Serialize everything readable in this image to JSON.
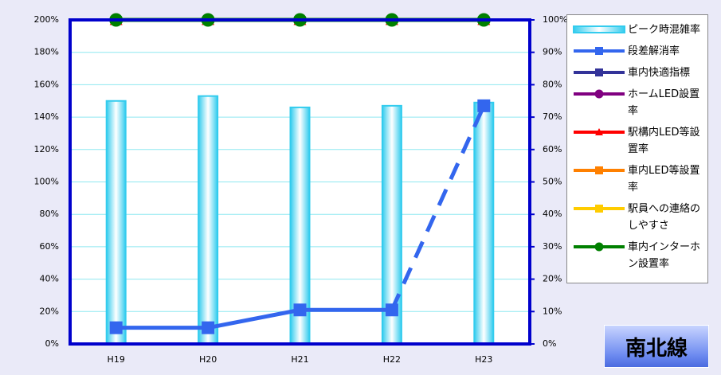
{
  "chart_data": {
    "type": "bar_line",
    "categories": [
      "H19",
      "H20",
      "H21",
      "H22",
      "H23"
    ],
    "ylim": [
      0,
      200
    ],
    "yticks": [
      {
        "value": 0,
        "label": "0%"
      },
      {
        "value": 20,
        "label": "20%"
      },
      {
        "value": 40,
        "label": "40%"
      },
      {
        "value": 60,
        "label": "60%"
      },
      {
        "value": 80,
        "label": "80%"
      },
      {
        "value": 100,
        "label": "100%"
      },
      {
        "value": 120,
        "label": "120%"
      },
      {
        "value": 140,
        "label": "140%"
      },
      {
        "value": 160,
        "label": "160%"
      },
      {
        "value": 180,
        "label": "180%"
      },
      {
        "value": 200,
        "label": "200%"
      }
    ],
    "y2lim": [
      0,
      100
    ],
    "y2ticks": [
      {
        "value": 0,
        "label": "0%"
      },
      {
        "value": 10,
        "label": "10%"
      },
      {
        "value": 20,
        "label": "20%"
      },
      {
        "value": 30,
        "label": "30%"
      },
      {
        "value": 40,
        "label": "40%"
      },
      {
        "value": 50,
        "label": "50%"
      },
      {
        "value": 60,
        "label": "60%"
      },
      {
        "value": 70,
        "label": "70%"
      },
      {
        "value": 80,
        "label": "80%"
      },
      {
        "value": 90,
        "label": "90%"
      },
      {
        "value": 100,
        "label": "100%"
      }
    ],
    "grid": true,
    "legend": "right",
    "annotation": "南北線",
    "series": [
      {
        "name": "ピーク時混雑率",
        "type": "bar",
        "color": "#33ccee",
        "values": [
          150,
          153,
          146,
          147,
          149
        ]
      },
      {
        "name": "段差解消率",
        "type": "line",
        "axis": "y2",
        "color": "#3366ee",
        "marker": "square",
        "line_style": [
          "solid",
          "solid",
          "solid",
          "dashed"
        ],
        "values": [
          5,
          5,
          10.5,
          10.5,
          73.5
        ]
      },
      {
        "name": "車内快適指標",
        "type": "line",
        "axis": "y2",
        "color": "#333399",
        "marker": "square",
        "values": [
          null,
          null,
          null,
          null,
          null
        ]
      },
      {
        "name": "ホームLED設置率",
        "type": "line",
        "axis": "y2",
        "color": "#800080",
        "marker": "circle",
        "values": [
          null,
          null,
          null,
          null,
          null
        ]
      },
      {
        "name": "駅構内LED等設置率",
        "type": "line",
        "axis": "y2",
        "color": "#ff0000",
        "marker": "triangle",
        "values": [
          100,
          100,
          100,
          100,
          100
        ]
      },
      {
        "name": "車内LED等設置率",
        "type": "line",
        "axis": "y2",
        "color": "#ff8000",
        "marker": "square",
        "values": [
          null,
          null,
          null,
          null,
          null
        ]
      },
      {
        "name": "駅員への連絡のしやすさ",
        "type": "line",
        "axis": "y2",
        "color": "#ffcc00",
        "marker": "square",
        "values": [
          null,
          null,
          null,
          null,
          null
        ]
      },
      {
        "name": "車内インターホン設置率",
        "type": "line",
        "axis": "y2",
        "color": "#008000",
        "marker": "circle",
        "values": [
          100,
          100,
          100,
          100,
          100
        ]
      }
    ]
  }
}
